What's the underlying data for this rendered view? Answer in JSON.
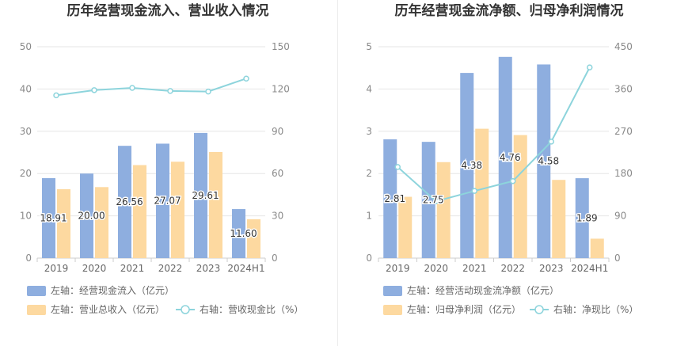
{
  "colors": {
    "bar_primary": "#8eaedf",
    "bar_secondary": "#fdd9a0",
    "line": "#8dd4dc",
    "grid": "#e6e6e6",
    "axis": "#cccccc"
  },
  "chart_data": [
    {
      "type": "bar",
      "title": "历年经营现金流入、营业收入情况",
      "categories": [
        "2019",
        "2020",
        "2021",
        "2022",
        "2023",
        "2024H1"
      ],
      "left_axis": {
        "ticks": [
          "0",
          "10",
          "20",
          "30",
          "40",
          "50"
        ],
        "ylim": [
          0,
          50
        ]
      },
      "right_axis": {
        "ticks": [
          "0",
          "30",
          "60",
          "90",
          "120",
          "150"
        ],
        "ylim": [
          0,
          150
        ]
      },
      "grid": true,
      "legend_position": "bottom-left",
      "series": [
        {
          "name": "左轴：经营现金流入（亿元）",
          "kind": "bar",
          "axis": "left",
          "color": "#8eaedf",
          "values": [
            18.91,
            20.0,
            26.56,
            27.07,
            29.61,
            11.6
          ],
          "labels": [
            "18.91",
            "20.00",
            "26.56",
            "27.07",
            "29.61",
            "11.60"
          ]
        },
        {
          "name": "左轴：营业总收入（亿元）",
          "kind": "bar",
          "axis": "left",
          "color": "#fdd9a0",
          "values": [
            16.3,
            16.8,
            22.0,
            22.8,
            25.1,
            9.2
          ]
        },
        {
          "name": "右轴：营收现金比（%）",
          "kind": "line",
          "axis": "right",
          "color": "#8dd4dc",
          "values": [
            115.5,
            119.2,
            120.8,
            118.6,
            118.2,
            127.4
          ]
        }
      ]
    },
    {
      "type": "bar",
      "title": "历年经营现金流净额、归母净利润情况",
      "categories": [
        "2019",
        "2020",
        "2021",
        "2022",
        "2023",
        "2024H1"
      ],
      "left_axis": {
        "ticks": [
          "0",
          "1",
          "2",
          "3",
          "4",
          "5"
        ],
        "ylim": [
          0,
          5
        ]
      },
      "right_axis": {
        "ticks": [
          "0",
          "90",
          "180",
          "270",
          "360",
          "450"
        ],
        "ylim": [
          0,
          450
        ]
      },
      "grid": true,
      "legend_position": "bottom-left",
      "series": [
        {
          "name": "左轴：经营活动现金流净额（亿元）",
          "kind": "bar",
          "axis": "left",
          "color": "#8eaedf",
          "values": [
            2.81,
            2.75,
            4.38,
            4.76,
            4.58,
            1.89
          ],
          "labels": [
            "2.81",
            "2.75",
            "4.38",
            "4.76",
            "4.58",
            "1.89"
          ]
        },
        {
          "name": "左轴：归母净利润（亿元）",
          "kind": "bar",
          "axis": "left",
          "color": "#fdd9a0",
          "values": [
            1.45,
            2.27,
            3.06,
            2.91,
            1.85,
            0.46
          ]
        },
        {
          "name": "右轴：净现比（%）",
          "kind": "line",
          "axis": "right",
          "color": "#8dd4dc",
          "values": [
            194,
            121,
            143,
            164,
            248,
            406
          ]
        }
      ]
    }
  ]
}
